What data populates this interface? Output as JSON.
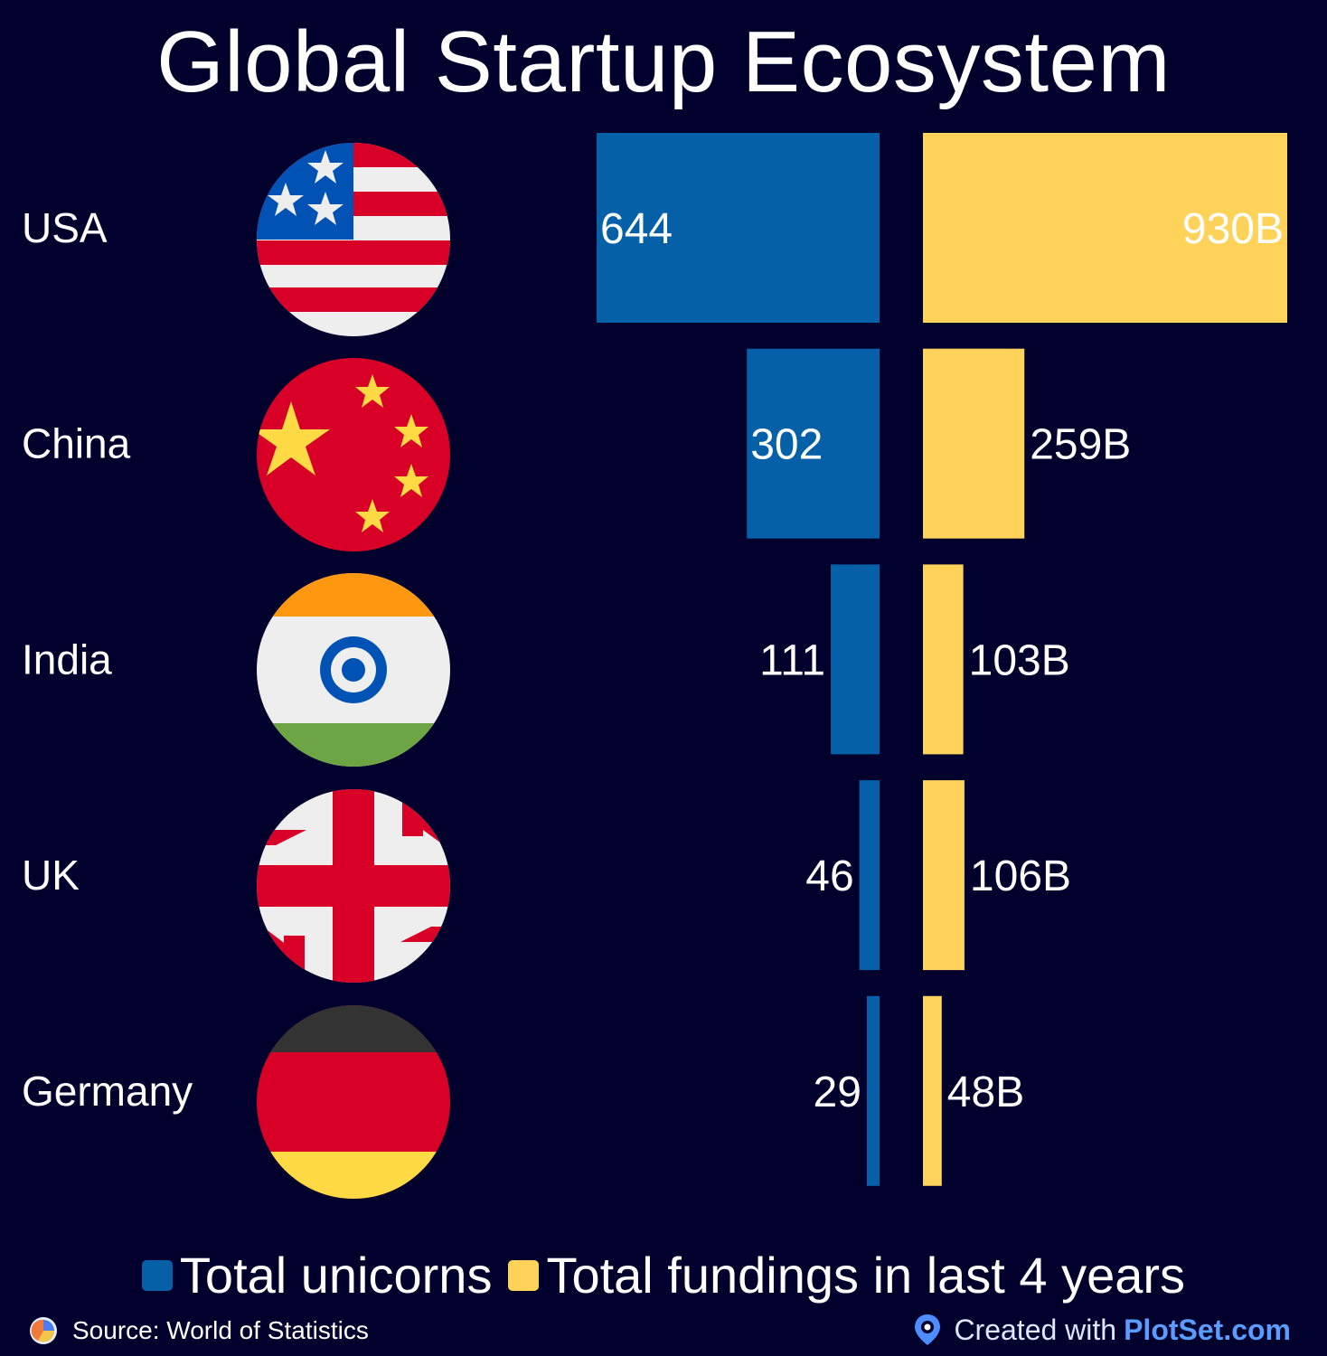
{
  "title": "Global Startup Ecosystem",
  "colors": {
    "background": "#01002d",
    "unicorns": "#0560a8",
    "fundings": "#ffd25a",
    "brand": "#5a9cff"
  },
  "chart_data": {
    "type": "bar",
    "orientation": "horizontal",
    "title": "Global Startup Ecosystem",
    "categories": [
      "USA",
      "China",
      "India",
      "UK",
      "Germany"
    ],
    "flag_icons": [
      "usa-flag-icon",
      "china-flag-icon",
      "india-flag-icon",
      "uk-flag-icon",
      "germany-flag-icon"
    ],
    "series": [
      {
        "name": "Total unicorns",
        "values": [
          644,
          302,
          111,
          46,
          29
        ],
        "labels": [
          "644",
          "302",
          "111",
          "46",
          "29"
        ],
        "color": "#0560a8",
        "direction": "left"
      },
      {
        "name": "Total fundings in last 4 years",
        "values": [
          930,
          259,
          103,
          106,
          48
        ],
        "labels": [
          "930B",
          "259B",
          "103B",
          "106B",
          "48B"
        ],
        "unit": "B",
        "color": "#ffd25a",
        "direction": "right"
      }
    ],
    "legend_position": "bottom",
    "grid": false
  },
  "legend": {
    "unicorns_label": "Total unicorns",
    "fundings_label": "Total fundings in last 4 years"
  },
  "footer": {
    "source": "Source: World of Statistics",
    "created_with": "Created with",
    "brand": "PlotSet.com"
  }
}
